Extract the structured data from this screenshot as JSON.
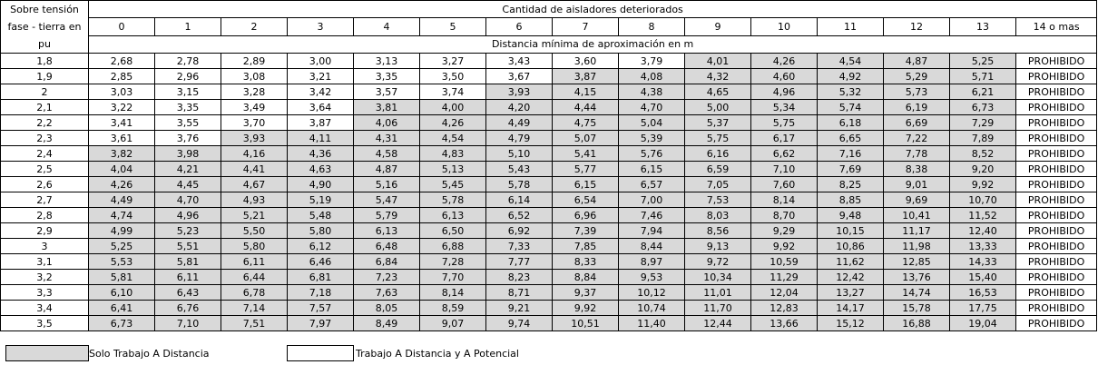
{
  "header": {
    "row_label_title": "Sobre tensión fase - tierra en pu",
    "group_title": "Cantidad de aisladores deteriorados",
    "columns": [
      "0",
      "1",
      "2",
      "3",
      "4",
      "5",
      "6",
      "7",
      "8",
      "9",
      "10",
      "11",
      "12",
      "13",
      "14 o mas"
    ],
    "subtitle": "Distancia mínima de aproximación en m"
  },
  "rows": [
    {
      "pu": "1,8",
      "values": [
        "2,68",
        "2,78",
        "2,89",
        "3,00",
        "3,13",
        "3,27",
        "3,43",
        "3,60",
        "3,79",
        "4,01",
        "4,26",
        "4,54",
        "4,87",
        "5,25",
        "PROHIBIDO"
      ],
      "shade_from": 9
    },
    {
      "pu": "1,9",
      "values": [
        "2,85",
        "2,96",
        "3,08",
        "3,21",
        "3,35",
        "3,50",
        "3,67",
        "3,87",
        "4,08",
        "4,32",
        "4,60",
        "4,92",
        "5,29",
        "5,71",
        "PROHIBIDO"
      ],
      "shade_from": 7
    },
    {
      "pu": "2",
      "values": [
        "3,03",
        "3,15",
        "3,28",
        "3,42",
        "3,57",
        "3,74",
        "3,93",
        "4,15",
        "4,38",
        "4,65",
        "4,96",
        "5,32",
        "5,73",
        "6,21",
        "PROHIBIDO"
      ],
      "shade_from": 6
    },
    {
      "pu": "2,1",
      "values": [
        "3,22",
        "3,35",
        "3,49",
        "3,64",
        "3,81",
        "4,00",
        "4,20",
        "4,44",
        "4,70",
        "5,00",
        "5,34",
        "5,74",
        "6,19",
        "6,73",
        "PROHIBIDO"
      ],
      "shade_from": 4
    },
    {
      "pu": "2,2",
      "values": [
        "3,41",
        "3,55",
        "3,70",
        "3,87",
        "4,06",
        "4,26",
        "4,49",
        "4,75",
        "5,04",
        "5,37",
        "5,75",
        "6,18",
        "6,69",
        "7,29",
        "PROHIBIDO"
      ],
      "shade_from": 4
    },
    {
      "pu": "2,3",
      "values": [
        "3,61",
        "3,76",
        "3,93",
        "4,11",
        "4,31",
        "4,54",
        "4,79",
        "5,07",
        "5,39",
        "5,75",
        "6,17",
        "6,65",
        "7,22",
        "7,89",
        "PROHIBIDO"
      ],
      "shade_from": 2
    },
    {
      "pu": "2,4",
      "values": [
        "3,82",
        "3,98",
        "4,16",
        "4,36",
        "4,58",
        "4,83",
        "5,10",
        "5,41",
        "5,76",
        "6,16",
        "6,62",
        "7,16",
        "7,78",
        "8,52",
        "PROHIBIDO"
      ],
      "shade_from": 0
    },
    {
      "pu": "2,5",
      "values": [
        "4,04",
        "4,21",
        "4,41",
        "4,63",
        "4,87",
        "5,13",
        "5,43",
        "5,77",
        "6,15",
        "6,59",
        "7,10",
        "7,69",
        "8,38",
        "9,20",
        "PROHIBIDO"
      ],
      "shade_from": 0
    },
    {
      "pu": "2,6",
      "values": [
        "4,26",
        "4,45",
        "4,67",
        "4,90",
        "5,16",
        "5,45",
        "5,78",
        "6,15",
        "6,57",
        "7,05",
        "7,60",
        "8,25",
        "9,01",
        "9,92",
        "PROHIBIDO"
      ],
      "shade_from": 0
    },
    {
      "pu": "2,7",
      "values": [
        "4,49",
        "4,70",
        "4,93",
        "5,19",
        "5,47",
        "5,78",
        "6,14",
        "6,54",
        "7,00",
        "7,53",
        "8,14",
        "8,85",
        "9,69",
        "10,70",
        "PROHIBIDO"
      ],
      "shade_from": 0
    },
    {
      "pu": "2,8",
      "values": [
        "4,74",
        "4,96",
        "5,21",
        "5,48",
        "5,79",
        "6,13",
        "6,52",
        "6,96",
        "7,46",
        "8,03",
        "8,70",
        "9,48",
        "10,41",
        "11,52",
        "PROHIBIDO"
      ],
      "shade_from": 0
    },
    {
      "pu": "2,9",
      "values": [
        "4,99",
        "5,23",
        "5,50",
        "5,80",
        "6,13",
        "6,50",
        "6,92",
        "7,39",
        "7,94",
        "8,56",
        "9,29",
        "10,15",
        "11,17",
        "12,40",
        "PROHIBIDO"
      ],
      "shade_from": 0
    },
    {
      "pu": "3",
      "values": [
        "5,25",
        "5,51",
        "5,80",
        "6,12",
        "6,48",
        "6,88",
        "7,33",
        "7,85",
        "8,44",
        "9,13",
        "9,92",
        "10,86",
        "11,98",
        "13,33",
        "PROHIBIDO"
      ],
      "shade_from": 0
    },
    {
      "pu": "3,1",
      "values": [
        "5,53",
        "5,81",
        "6,11",
        "6,46",
        "6,84",
        "7,28",
        "7,77",
        "8,33",
        "8,97",
        "9,72",
        "10,59",
        "11,62",
        "12,85",
        "14,33",
        "PROHIBIDO"
      ],
      "shade_from": 0
    },
    {
      "pu": "3,2",
      "values": [
        "5,81",
        "6,11",
        "6,44",
        "6,81",
        "7,23",
        "7,70",
        "8,23",
        "8,84",
        "9,53",
        "10,34",
        "11,29",
        "12,42",
        "13,76",
        "15,40",
        "PROHIBIDO"
      ],
      "shade_from": 0
    },
    {
      "pu": "3,3",
      "values": [
        "6,10",
        "6,43",
        "6,78",
        "7,18",
        "7,63",
        "8,14",
        "8,71",
        "9,37",
        "10,12",
        "11,01",
        "12,04",
        "13,27",
        "14,74",
        "16,53",
        "PROHIBIDO"
      ],
      "shade_from": 0
    },
    {
      "pu": "3,4",
      "values": [
        "6,41",
        "6,76",
        "7,14",
        "7,57",
        "8,05",
        "8,59",
        "9,21",
        "9,92",
        "10,74",
        "11,70",
        "12,83",
        "14,17",
        "15,78",
        "17,75",
        "PROHIBIDO"
      ],
      "shade_from": 0
    },
    {
      "pu": "3,5",
      "values": [
        "6,73",
        "7,10",
        "7,51",
        "7,97",
        "8,49",
        "9,07",
        "9,74",
        "10,51",
        "11,40",
        "12,44",
        "13,66",
        "15,12",
        "16,88",
        "19,04",
        "PROHIBIDO"
      ],
      "shade_from": 0
    }
  ],
  "legend": {
    "shaded_label": "Solo Trabajo A Distancia",
    "shaded_color": "#d9d9d9",
    "white_label": "Trabajo A Distancia y A Potencial",
    "white_color": "#ffffff"
  }
}
